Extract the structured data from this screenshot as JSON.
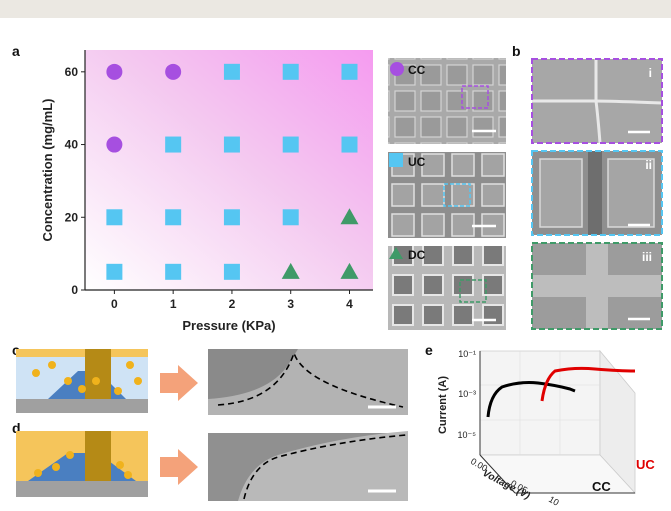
{
  "panel_labels": {
    "a": "a",
    "b": "b",
    "c": "c",
    "d": "d",
    "e": "e"
  },
  "chart_data": [
    {
      "type": "scatter",
      "xlabel": "Pressure (KPa)",
      "ylabel": "Concentration (mg/mL)",
      "x_ticks": [
        "0",
        "1",
        "2",
        "3",
        "4"
      ],
      "y_ticks": [
        "0",
        "20",
        "40",
        "60"
      ],
      "xlim": [
        -0.5,
        4.4
      ],
      "ylim": [
        0,
        66
      ],
      "background": "pink gradient (right) to white",
      "points": [
        {
          "x": 0,
          "y": 60,
          "marker": "circle",
          "class": "CC"
        },
        {
          "x": 1,
          "y": 60,
          "marker": "circle",
          "class": "CC"
        },
        {
          "x": 2,
          "y": 60,
          "marker": "square",
          "class": "UC"
        },
        {
          "x": 3,
          "y": 60,
          "marker": "square",
          "class": "UC"
        },
        {
          "x": 4,
          "y": 60,
          "marker": "square",
          "class": "UC"
        },
        {
          "x": 0,
          "y": 40,
          "marker": "circle",
          "class": "CC"
        },
        {
          "x": 1,
          "y": 40,
          "marker": "square",
          "class": "UC"
        },
        {
          "x": 2,
          "y": 40,
          "marker": "square",
          "class": "UC"
        },
        {
          "x": 3,
          "y": 40,
          "marker": "square",
          "class": "UC"
        },
        {
          "x": 4,
          "y": 40,
          "marker": "square",
          "class": "UC"
        },
        {
          "x": 0,
          "y": 20,
          "marker": "square",
          "class": "UC"
        },
        {
          "x": 1,
          "y": 20,
          "marker": "square",
          "class": "UC"
        },
        {
          "x": 2,
          "y": 20,
          "marker": "square",
          "class": "UC"
        },
        {
          "x": 3,
          "y": 20,
          "marker": "square",
          "class": "UC"
        },
        {
          "x": 4,
          "y": 20,
          "marker": "triangle",
          "class": "DC"
        },
        {
          "x": 0,
          "y": 5,
          "marker": "square",
          "class": "UC"
        },
        {
          "x": 1,
          "y": 5,
          "marker": "square",
          "class": "UC"
        },
        {
          "x": 2,
          "y": 5,
          "marker": "square",
          "class": "UC"
        },
        {
          "x": 3,
          "y": 5,
          "marker": "triangle",
          "class": "DC"
        },
        {
          "x": 4,
          "y": 5,
          "marker": "triangle",
          "class": "DC"
        }
      ],
      "colors": {
        "CC": "#a64fe0",
        "UC": "#55c6f2",
        "DC": "#3f9a68"
      }
    },
    {
      "type": "line",
      "xlabel": "Voltage (V)",
      "ylabel": "Current (A)",
      "y_ticks": [
        "10⁻⁵",
        "10⁻³",
        "10⁻¹"
      ],
      "x_ticks": [
        "0.00",
        "0.05",
        "10"
      ],
      "z_labels": [
        "CC",
        "UC"
      ],
      "series": [
        {
          "name": "CC",
          "color": "#000000"
        },
        {
          "name": "UC",
          "color": "#e00000"
        }
      ]
    }
  ],
  "sem_labels": {
    "cc": "CC",
    "uc": "UC",
    "dc": "DC",
    "i": "i",
    "ii": "ii",
    "iii": "iii"
  },
  "colors": {
    "cc": "#a64fe0",
    "uc": "#55c6f2",
    "dc": "#3f9a68",
    "accent_red": "#e00000"
  }
}
